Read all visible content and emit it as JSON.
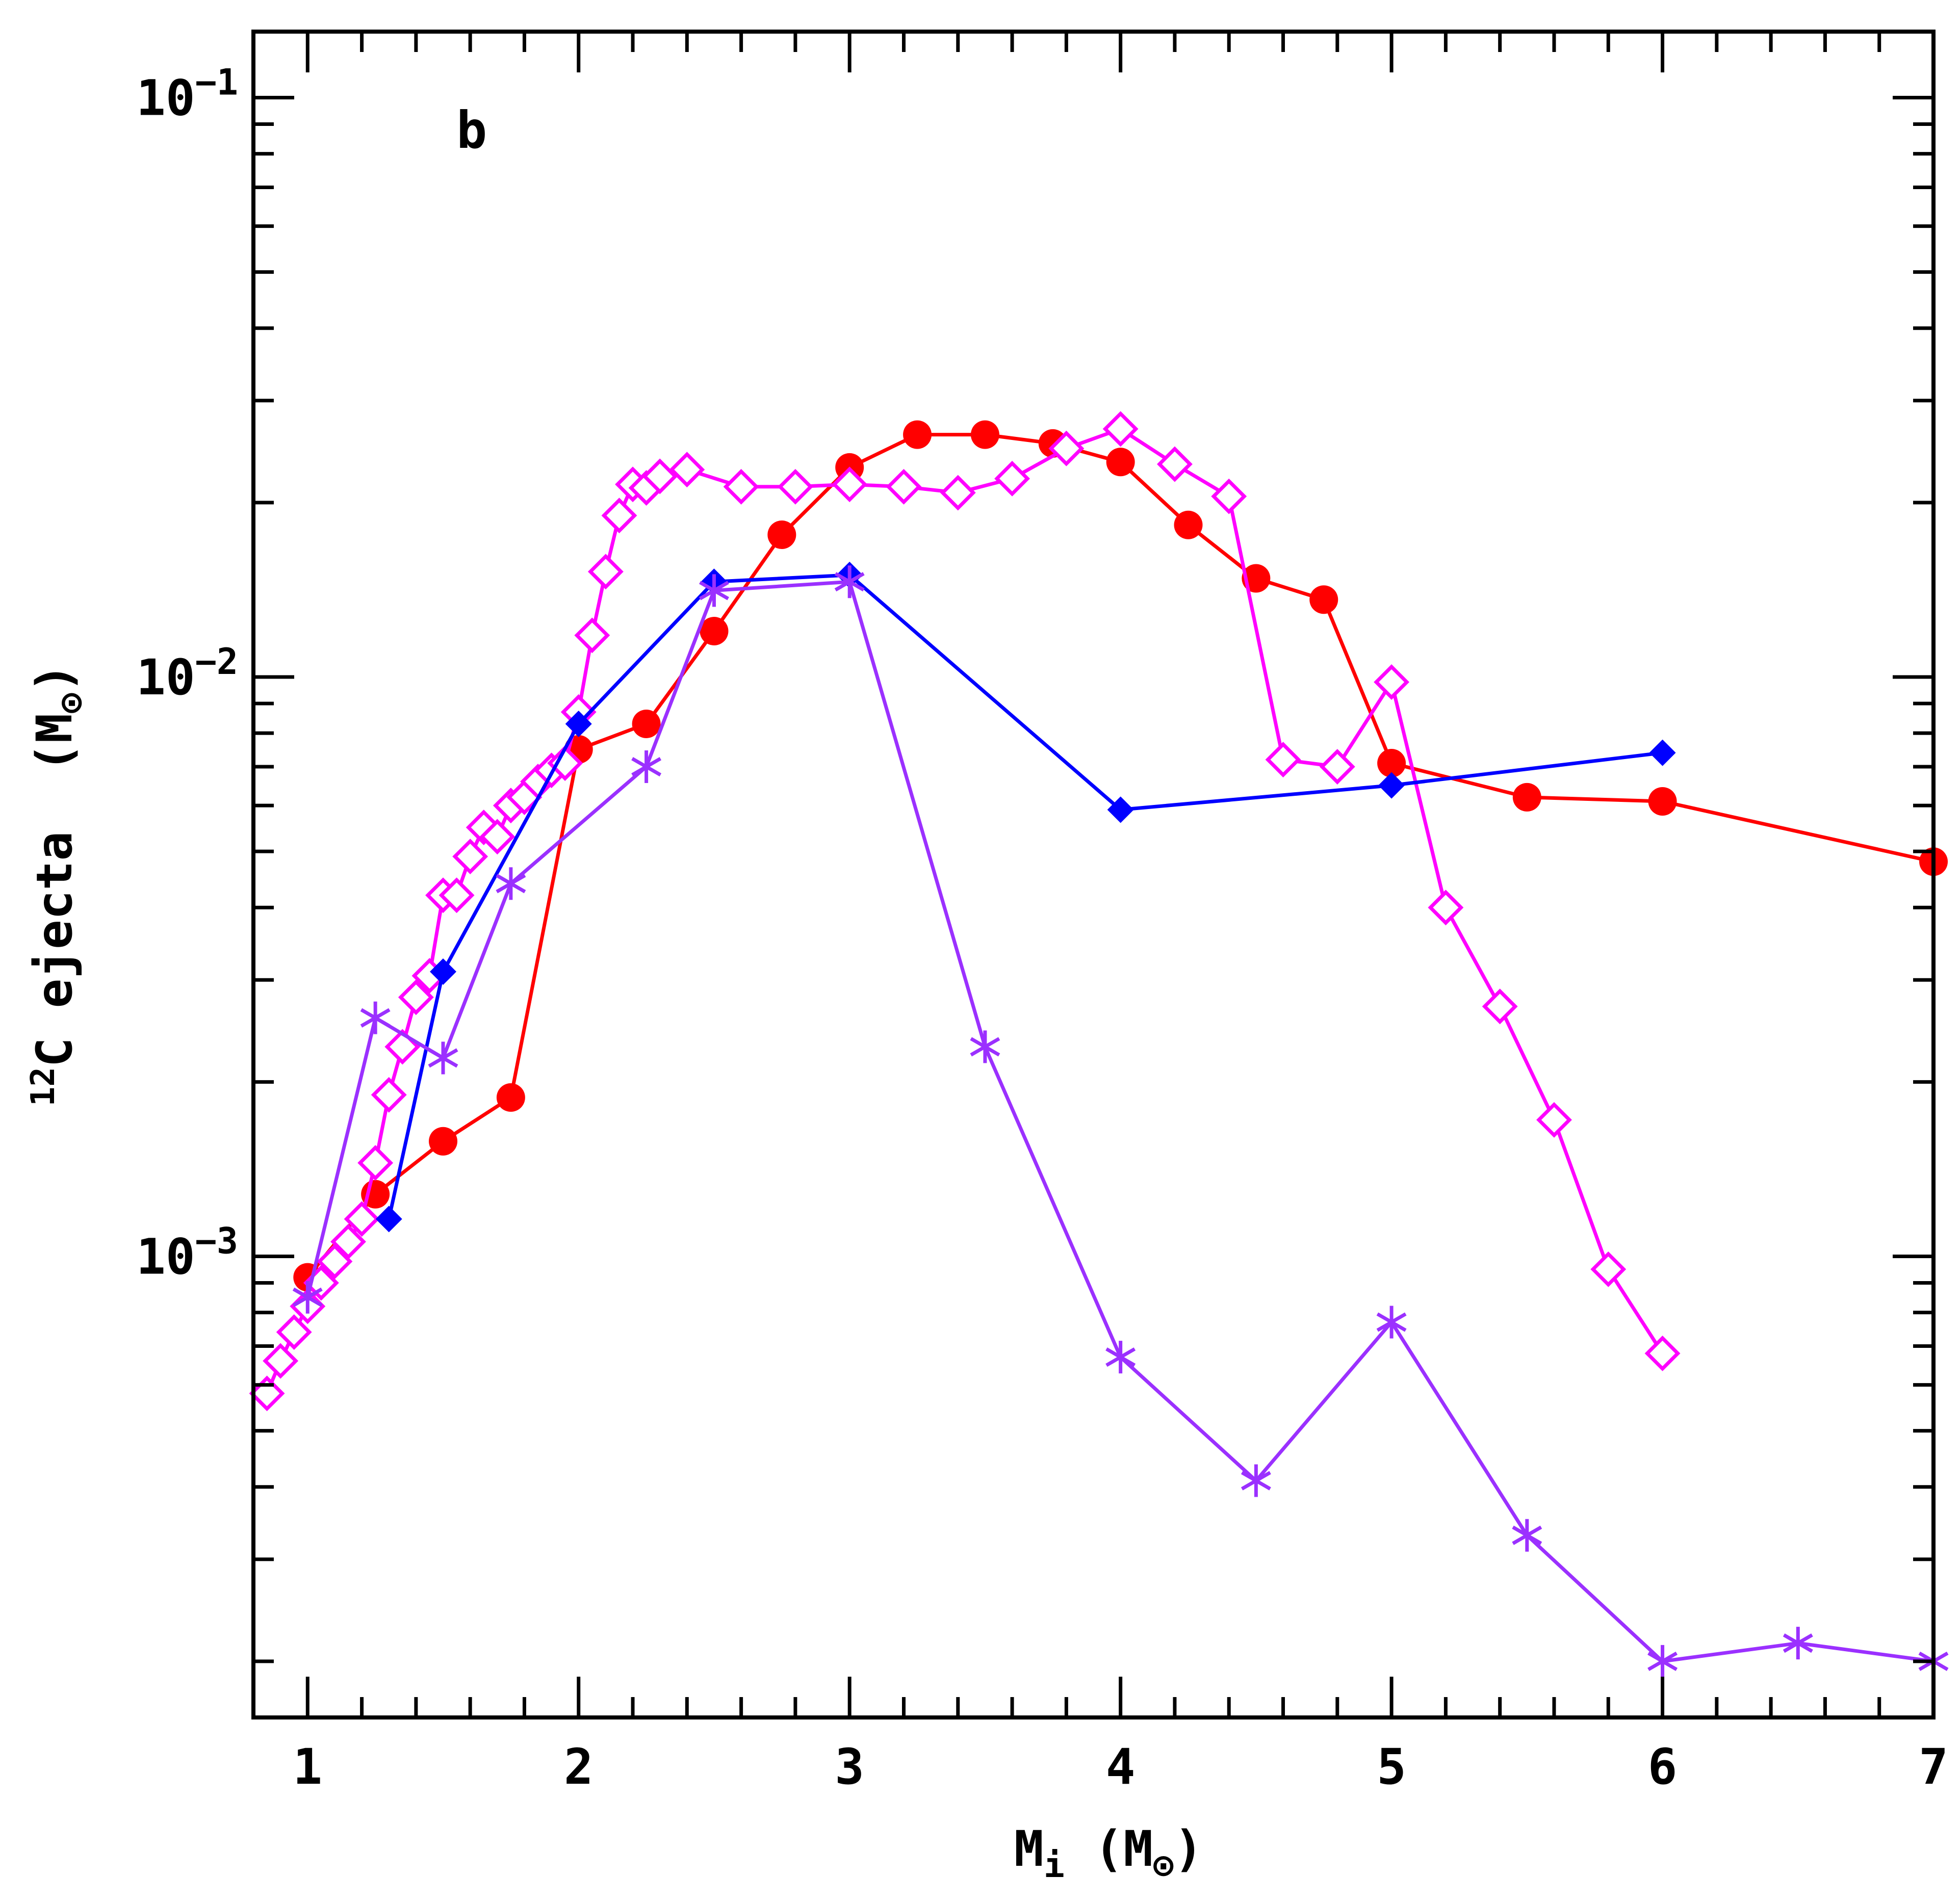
{
  "chart_data": {
    "type": "line",
    "title": "",
    "panel_label": "b",
    "xlabel": {
      "base": "M",
      "sub": "i",
      "paren_open": "(",
      "unit": "M",
      "unit_sub": "⊙",
      "paren_close": ")"
    },
    "ylabel": {
      "sup": "12",
      "main": "C ejecta",
      "paren_open": "(",
      "unit": "M",
      "unit_sub": "⊙",
      "paren_close": ")"
    },
    "xlim": [
      0.8,
      7.0
    ],
    "ylim": [
      0.00016,
      0.13
    ],
    "yscale": "log",
    "x_ticks": [
      {
        "value": 1,
        "label": "1"
      },
      {
        "value": 2,
        "label": "2"
      },
      {
        "value": 3,
        "label": "3"
      },
      {
        "value": 4,
        "label": "4"
      },
      {
        "value": 5,
        "label": "5"
      },
      {
        "value": 6,
        "label": "6"
      },
      {
        "value": 7,
        "label": "7"
      }
    ],
    "y_ticks": [
      {
        "value": 0.001,
        "label_base": "10",
        "label_exp": "−3"
      },
      {
        "value": 0.01,
        "label_base": "10",
        "label_exp": "−2"
      },
      {
        "value": 0.1,
        "label_base": "10",
        "label_exp": "−1"
      }
    ],
    "series": [
      {
        "name": "red-circles",
        "color": "#ff0000",
        "marker": "filled-circle",
        "x": [
          1.0,
          1.25,
          1.5,
          1.75,
          2.0,
          2.25,
          2.5,
          2.75,
          3.0,
          3.25,
          3.5,
          3.75,
          4.0,
          4.25,
          4.5,
          4.75,
          5.0,
          5.5,
          6.0,
          7.0
        ],
        "y": [
          0.00092,
          0.00128,
          0.00158,
          0.00188,
          0.0075,
          0.0083,
          0.012,
          0.0176,
          0.023,
          0.0262,
          0.0262,
          0.0253,
          0.0235,
          0.0183,
          0.0148,
          0.0136,
          0.0071,
          0.0062,
          0.0061,
          0.0048
        ]
      },
      {
        "name": "magenta-open-diamonds",
        "color": "#ff00ff",
        "marker": "open-diamond",
        "x": [
          0.85,
          0.9,
          0.95,
          1.0,
          1.05,
          1.1,
          1.15,
          1.2,
          1.25,
          1.3,
          1.35,
          1.4,
          1.45,
          1.5,
          1.55,
          1.6,
          1.65,
          1.7,
          1.75,
          1.8,
          1.85,
          1.9,
          1.95,
          2.0,
          2.05,
          2.1,
          2.15,
          2.2,
          2.25,
          2.3,
          2.4,
          2.6,
          2.8,
          3.0,
          3.2,
          3.4,
          3.6,
          3.8,
          4.0,
          4.2,
          4.4,
          4.6,
          4.8,
          5.0,
          5.2,
          5.4,
          5.6,
          5.8,
          6.0
        ],
        "y": [
          0.00058,
          0.00066,
          0.00074,
          0.00082,
          0.0009,
          0.00098,
          0.00106,
          0.00116,
          0.00145,
          0.0019,
          0.0023,
          0.0028,
          0.00305,
          0.0042,
          0.0042,
          0.0049,
          0.0055,
          0.0053,
          0.006,
          0.0062,
          0.0066,
          0.0069,
          0.0071,
          0.0087,
          0.0118,
          0.0152,
          0.019,
          0.0215,
          0.0212,
          0.0222,
          0.0228,
          0.0213,
          0.0213,
          0.0215,
          0.0213,
          0.0208,
          0.022,
          0.0248,
          0.0268,
          0.0233,
          0.0205,
          0.0072,
          0.007,
          0.0098,
          0.004,
          0.0027,
          0.00172,
          0.00095,
          0.00068
        ]
      },
      {
        "name": "blue-filled-diamonds",
        "color": "#0000ff",
        "marker": "filled-diamond",
        "x": [
          1.3,
          1.5,
          2.0,
          2.5,
          3.0,
          4.0,
          5.0,
          6.0
        ],
        "y": [
          0.00116,
          0.0031,
          0.0083,
          0.0146,
          0.015,
          0.0059,
          0.0065,
          0.0074
        ]
      },
      {
        "name": "purple-asterisks",
        "color": "#9b30ff",
        "marker": "asterisk",
        "x": [
          1.0,
          1.25,
          1.5,
          1.75,
          2.25,
          2.5,
          3.0,
          3.5,
          4.0,
          4.5,
          5.0,
          5.5,
          6.0,
          6.5,
          7.0
        ],
        "y": [
          0.00085,
          0.00258,
          0.0022,
          0.0044,
          0.007,
          0.0141,
          0.0146,
          0.0023,
          0.00067,
          0.00041,
          0.00077,
          0.00033,
          0.0002,
          0.000215,
          0.0002
        ]
      }
    ]
  }
}
